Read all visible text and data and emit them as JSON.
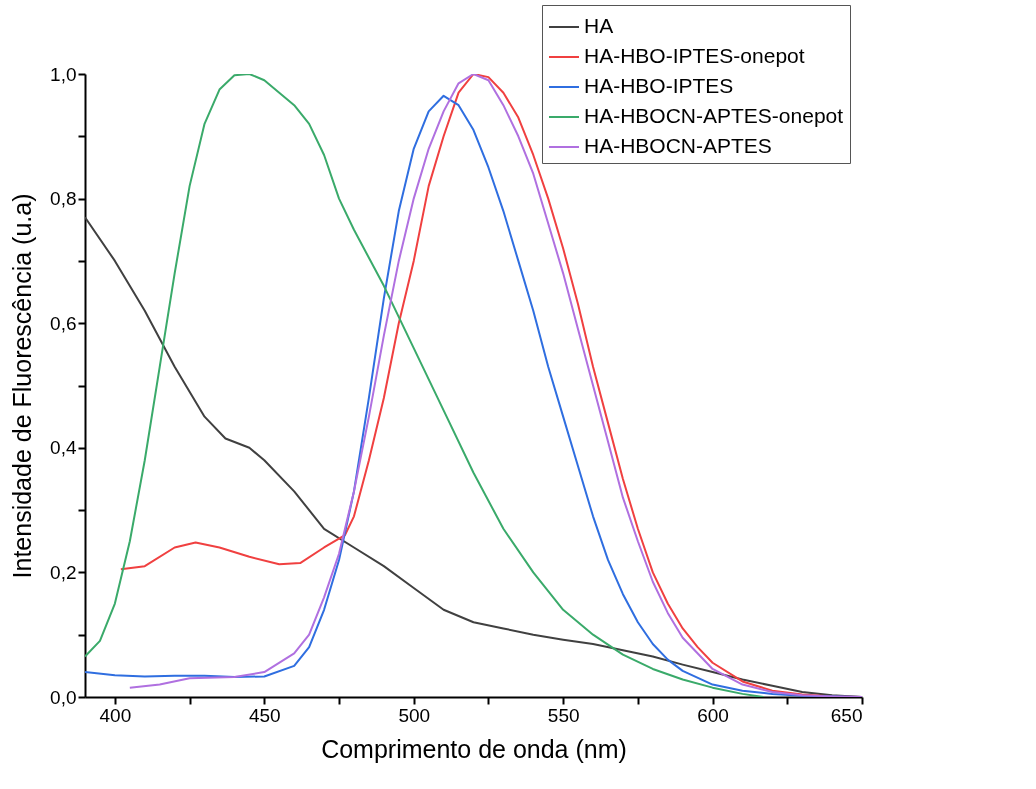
{
  "chart_data": {
    "type": "line",
    "xlabel": "Comprimento de onda (nm)",
    "ylabel": "Intensidade de Fluorescência (u.a)",
    "xlim": [
      390,
      650
    ],
    "ylim": [
      0,
      1.0
    ],
    "xticks": [
      400,
      {
        "value": 425,
        "label": null
      },
      450,
      {
        "value": 475,
        "label": null
      },
      500,
      {
        "value": 525,
        "label": null
      },
      550,
      {
        "value": 575,
        "label": null
      },
      600,
      {
        "value": 625,
        "label": null
      },
      650
    ],
    "yticks": [
      {
        "value": 0,
        "label": "0,0"
      },
      {
        "value": 0.1,
        "label": null
      },
      {
        "value": 0.2,
        "label": "0,2"
      },
      {
        "value": 0.3,
        "label": null
      },
      {
        "value": 0.4,
        "label": "0,4"
      },
      {
        "value": 0.5,
        "label": null
      },
      {
        "value": 0.6,
        "label": "0,6"
      },
      {
        "value": 0.7,
        "label": null
      },
      {
        "value": 0.8,
        "label": "0,8"
      },
      {
        "value": 0.9,
        "label": null
      },
      {
        "value": 1.0,
        "label": "1,0"
      }
    ],
    "grid": false,
    "legend": "top right",
    "marker": "none",
    "line_style": "solid",
    "series": [
      {
        "name": "HA",
        "color": "#404040",
        "x": [
          390,
          400,
          410,
          420,
          430,
          437,
          445,
          450,
          460,
          470,
          480,
          490,
          500,
          510,
          520,
          530,
          540,
          550,
          560,
          570,
          580,
          590,
          600,
          610,
          620,
          630,
          640,
          650
        ],
        "values": [
          0.77,
          0.7,
          0.62,
          0.53,
          0.45,
          0.415,
          0.4,
          0.38,
          0.33,
          0.27,
          0.24,
          0.21,
          0.175,
          0.14,
          0.12,
          0.11,
          0.1,
          0.092,
          0.085,
          0.075,
          0.065,
          0.052,
          0.04,
          0.028,
          0.018,
          0.008,
          0.003,
          0
        ]
      },
      {
        "name": "HA-HBO-IPTES-onepot",
        "color": "#f04040",
        "x": [
          402,
          410,
          420,
          427,
          435,
          445,
          455,
          462,
          470,
          477,
          480,
          485,
          490,
          495,
          500,
          505,
          510,
          515,
          520,
          525,
          530,
          535,
          540,
          545,
          550,
          555,
          560,
          565,
          570,
          575,
          580,
          585,
          590,
          595,
          600,
          610,
          620,
          630,
          640,
          650
        ],
        "values": [
          0.205,
          0.21,
          0.24,
          0.248,
          0.24,
          0.225,
          0.213,
          0.215,
          0.24,
          0.26,
          0.29,
          0.38,
          0.48,
          0.6,
          0.7,
          0.82,
          0.9,
          0.97,
          1.0,
          0.995,
          0.97,
          0.93,
          0.87,
          0.8,
          0.72,
          0.63,
          0.53,
          0.44,
          0.35,
          0.27,
          0.2,
          0.15,
          0.11,
          0.08,
          0.055,
          0.025,
          0.01,
          0.004,
          0.001,
          0
        ]
      },
      {
        "name": "HA-HBO-IPTES",
        "color": "#2f6ee0",
        "x": [
          390,
          400,
          410,
          420,
          430,
          440,
          450,
          460,
          465,
          470,
          475,
          480,
          485,
          490,
          495,
          500,
          505,
          510,
          515,
          520,
          525,
          530,
          535,
          540,
          545,
          550,
          555,
          560,
          565,
          570,
          575,
          580,
          585,
          590,
          600,
          610,
          620,
          630,
          650
        ],
        "values": [
          0.04,
          0.035,
          0.033,
          0.034,
          0.034,
          0.032,
          0.033,
          0.05,
          0.08,
          0.14,
          0.22,
          0.33,
          0.48,
          0.64,
          0.78,
          0.88,
          0.94,
          0.965,
          0.95,
          0.91,
          0.85,
          0.78,
          0.7,
          0.62,
          0.53,
          0.45,
          0.37,
          0.29,
          0.22,
          0.165,
          0.12,
          0.085,
          0.06,
          0.042,
          0.02,
          0.01,
          0.005,
          0.002,
          0
        ]
      },
      {
        "name": "HA-HBOCN-APTES-onepot",
        "color": "#3aaa6a",
        "x": [
          390,
          395,
          400,
          405,
          410,
          415,
          420,
          425,
          430,
          435,
          440,
          445,
          450,
          455,
          460,
          465,
          470,
          475,
          480,
          490,
          500,
          510,
          520,
          530,
          540,
          550,
          560,
          570,
          580,
          590,
          600,
          610,
          617
        ],
        "values": [
          0.065,
          0.09,
          0.15,
          0.25,
          0.38,
          0.53,
          0.68,
          0.82,
          0.92,
          0.975,
          0.998,
          1.0,
          0.99,
          0.97,
          0.95,
          0.92,
          0.87,
          0.8,
          0.75,
          0.66,
          0.56,
          0.46,
          0.36,
          0.27,
          0.2,
          0.14,
          0.1,
          0.068,
          0.045,
          0.028,
          0.015,
          0.005,
          0
        ]
      },
      {
        "name": "HA-HBOCN-APTES",
        "color": "#b070e0",
        "x": [
          405,
          415,
          425,
          440,
          450,
          460,
          465,
          470,
          475,
          480,
          485,
          490,
          495,
          500,
          505,
          510,
          515,
          520,
          525,
          530,
          535,
          540,
          545,
          550,
          555,
          560,
          565,
          570,
          575,
          580,
          585,
          590,
          600,
          610,
          620,
          630,
          640,
          650
        ],
        "values": [
          0.015,
          0.02,
          0.03,
          0.032,
          0.04,
          0.07,
          0.1,
          0.16,
          0.23,
          0.33,
          0.45,
          0.58,
          0.7,
          0.8,
          0.88,
          0.94,
          0.985,
          1.0,
          0.99,
          0.95,
          0.9,
          0.84,
          0.76,
          0.68,
          0.59,
          0.5,
          0.41,
          0.32,
          0.25,
          0.185,
          0.135,
          0.095,
          0.045,
          0.02,
          0.008,
          0.003,
          0.001,
          0
        ]
      }
    ]
  }
}
